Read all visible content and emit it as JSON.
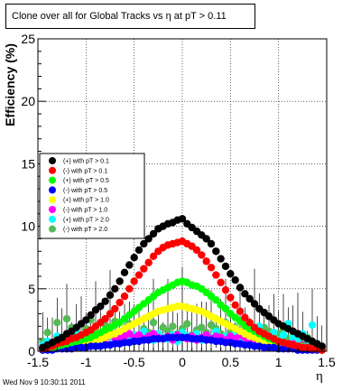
{
  "title": "Clone  over all for Global Tracks vs η at pT > 0.11",
  "footer": "Wed Nov  9 10:30:11 2011",
  "chart_data": {
    "type": "scatter",
    "title": "Clone  over all for Global Tracks vs η at pT > 0.11",
    "xlabel": "η",
    "ylabel": "Efficiency (%)",
    "xlim": [
      -1.5,
      1.5
    ],
    "ylim": [
      0,
      25
    ],
    "grid": true,
    "legend_position": "center-left",
    "x_ticks": [
      -1.5,
      -1,
      -0.5,
      0,
      0.5,
      1,
      1.5
    ],
    "x_tick_labels": [
      "-1.5",
      "-1",
      "-0.5",
      "0",
      "0.5",
      "1",
      "1.5"
    ],
    "y_ticks": [
      0,
      5,
      10,
      15,
      20,
      25
    ],
    "y_tick_labels": [
      "0",
      "5",
      "10",
      "15",
      "20",
      "25"
    ],
    "x": [
      -1.45,
      -1.4,
      -1.35,
      -1.3,
      -1.25,
      -1.2,
      -1.15,
      -1.1,
      -1.05,
      -1.0,
      -0.95,
      -0.9,
      -0.85,
      -0.8,
      -0.75,
      -0.7,
      -0.65,
      -0.6,
      -0.55,
      -0.5,
      -0.45,
      -0.4,
      -0.35,
      -0.3,
      -0.25,
      -0.2,
      -0.15,
      -0.1,
      -0.05,
      0.0,
      0.05,
      0.1,
      0.15,
      0.2,
      0.25,
      0.3,
      0.35,
      0.4,
      0.45,
      0.5,
      0.55,
      0.6,
      0.65,
      0.7,
      0.75,
      0.8,
      0.85,
      0.9,
      0.95,
      1.0,
      1.05,
      1.1,
      1.15,
      1.2,
      1.25,
      1.3,
      1.35,
      1.4,
      1.45
    ],
    "series": [
      {
        "name": "(+) with pT > 0.1",
        "color": "#000000",
        "values": [
          0.3,
          0.5,
          0.7,
          0.9,
          1.1,
          1.4,
          1.6,
          1.9,
          2.2,
          2.5,
          2.9,
          3.3,
          3.6,
          4.0,
          4.5,
          5.0,
          5.6,
          6.3,
          6.9,
          7.5,
          8.1,
          8.6,
          9.0,
          9.4,
          9.8,
          10.0,
          10.2,
          10.3,
          10.5,
          10.6,
          10.2,
          9.9,
          9.6,
          9.3,
          9.0,
          8.6,
          8.0,
          7.4,
          6.8,
          6.2,
          5.7,
          5.1,
          4.6,
          4.2,
          3.8,
          3.4,
          3.1,
          2.8,
          2.5,
          2.2,
          2.0,
          1.8,
          1.6,
          1.4,
          1.2,
          1.0,
          0.8,
          0.6,
          0.4
        ]
      },
      {
        "name": "(-) with pT > 0.1",
        "color": "#ff0000",
        "values": [
          0.2,
          0.3,
          0.4,
          0.6,
          0.7,
          0.8,
          1.0,
          1.1,
          1.3,
          1.5,
          1.7,
          2.0,
          2.3,
          2.6,
          3.0,
          3.4,
          3.9,
          4.4,
          5.0,
          5.6,
          6.1,
          6.6,
          7.1,
          7.6,
          8.0,
          8.3,
          8.5,
          8.6,
          8.7,
          8.8,
          8.6,
          8.4,
          8.1,
          7.7,
          7.2,
          6.7,
          6.1,
          5.5,
          4.9,
          4.3,
          3.7,
          3.2,
          2.7,
          2.3,
          1.9,
          1.6,
          1.4,
          1.2,
          1.0,
          0.8,
          0.7,
          0.6,
          0.5,
          0.4,
          0.3,
          0.3,
          0.2,
          0.2,
          0.1
        ]
      },
      {
        "name": "(+) with pT > 0.5",
        "color": "#00ff00",
        "values": [
          0.2,
          0.3,
          0.3,
          0.4,
          0.5,
          0.6,
          0.7,
          0.8,
          0.9,
          1.0,
          1.1,
          1.3,
          1.5,
          1.7,
          1.9,
          2.1,
          2.3,
          2.6,
          2.9,
          3.2,
          3.5,
          3.8,
          4.1,
          4.4,
          4.7,
          4.9,
          5.1,
          5.3,
          5.5,
          5.6,
          5.5,
          5.3,
          5.2,
          5.0,
          4.7,
          4.4,
          4.1,
          3.7,
          3.4,
          3.0,
          2.7,
          2.4,
          2.1,
          1.8,
          1.6,
          1.4,
          1.2,
          1.0,
          0.9,
          0.8,
          0.7,
          0.6,
          0.5,
          0.4,
          0.4,
          0.3,
          0.3,
          0.2,
          0.2
        ]
      },
      {
        "name": "(-) with pT > 0.5",
        "color": "#0000ff",
        "values": [
          0.1,
          0.1,
          0.1,
          0.2,
          0.2,
          0.2,
          0.2,
          0.3,
          0.3,
          0.3,
          0.4,
          0.4,
          0.4,
          0.5,
          0.5,
          0.6,
          0.6,
          0.7,
          0.7,
          0.8,
          0.8,
          0.9,
          0.9,
          1.0,
          1.0,
          1.0,
          1.1,
          1.1,
          1.1,
          1.1,
          1.1,
          1.0,
          1.0,
          1.0,
          0.9,
          0.9,
          0.8,
          0.8,
          0.7,
          0.7,
          0.6,
          0.6,
          0.5,
          0.5,
          0.4,
          0.4,
          0.3,
          0.3,
          0.3,
          0.2,
          0.2,
          0.2,
          0.2,
          0.1,
          0.1,
          0.1,
          0.1,
          0.1,
          0.1
        ]
      },
      {
        "name": "(+) with pT > 1.0",
        "color": "#ffff00",
        "values": [
          0.1,
          0.2,
          0.2,
          0.3,
          0.3,
          0.4,
          0.4,
          0.5,
          0.6,
          0.7,
          0.8,
          0.9,
          1.0,
          1.1,
          1.3,
          1.4,
          1.6,
          1.8,
          2.0,
          2.2,
          2.4,
          2.6,
          2.8,
          3.0,
          3.2,
          3.3,
          3.4,
          3.5,
          3.6,
          3.6,
          3.5,
          3.4,
          3.3,
          3.2,
          3.0,
          2.8,
          2.6,
          2.4,
          2.2,
          2.0,
          1.8,
          1.6,
          1.4,
          1.2,
          1.1,
          0.9,
          0.8,
          0.7,
          0.6,
          0.5,
          0.4,
          0.4,
          0.3,
          0.3,
          0.2,
          0.2,
          0.2,
          0.1,
          0.1
        ]
      },
      {
        "name": "(-) with pT > 1.0",
        "color": "#ff00ff",
        "values": [
          0.3,
          0.5,
          0.7,
          0.5,
          0.8,
          0.6,
          1.0,
          0.7,
          0.9,
          0.8,
          1.1,
          0.9,
          1.2,
          1.0,
          1.3,
          1.1,
          1.0,
          1.2,
          1.4,
          1.1,
          1.3,
          1.0,
          1.2,
          1.4,
          1.1,
          1.0,
          1.2,
          0.9,
          1.3,
          1.1,
          1.0,
          1.2,
          0.9,
          1.1,
          1.3,
          1.0,
          1.2,
          1.1,
          0.9,
          1.2,
          1.0,
          1.3,
          1.1,
          0.9,
          1.0,
          0.8,
          0.9,
          0.7,
          0.8,
          0.6,
          0.7,
          0.5,
          0.6,
          0.4,
          0.5,
          0.3,
          0.4,
          0.2,
          0.3
        ]
      },
      {
        "name": "(+) with pT > 2.0",
        "color": "#00ffff",
        "values": [
          0.5,
          0.8,
          0.6,
          1.2,
          0.9,
          0.7,
          1.0,
          1.5,
          0.8,
          1.3,
          1.1,
          0.9,
          1.4,
          1.0,
          1.2,
          0.8,
          1.5,
          1.1,
          0.9,
          1.3,
          1.0,
          1.6,
          1.2,
          0.9,
          1.4,
          1.1,
          1.0,
          1.3,
          0.8,
          1.5,
          1.2,
          1.0,
          1.4,
          0.9,
          1.3,
          1.1,
          1.6,
          0.9,
          1.2,
          1.0,
          1.4,
          0.8,
          1.3,
          1.1,
          0.9,
          2.0,
          1.2,
          1.0,
          1.5,
          0.9,
          1.3,
          2.2,
          1.1,
          1.0,
          1.4,
          0.8,
          2.1,
          0.6,
          0.4
        ]
      },
      {
        "name": "(-) with pT > 2.0",
        "color": "#55bb55",
        "values": [
          0.8,
          1.5,
          0.6,
          2.3,
          1.0,
          2.6,
          1.9,
          1.2,
          0.9,
          1.8,
          2.5,
          1.4,
          1.0,
          2.1,
          1.6,
          2.4,
          1.1,
          1.7,
          2.2,
          1.3,
          0.9,
          1.8,
          1.5,
          2.3,
          1.2,
          1.9,
          1.6,
          2.0,
          1.4,
          1.8,
          2.2,
          1.3,
          1.7,
          1.9,
          1.5,
          2.1,
          1.8,
          1.4,
          2.3,
          1.6,
          1.9,
          1.2,
          2.0,
          1.5,
          1.7,
          1.3,
          1.9,
          1.6,
          1.1,
          1.4,
          1.8,
          1.0,
          1.5,
          1.2,
          0.9,
          1.1,
          0.8,
          0.6,
          0.4
        ]
      }
    ]
  }
}
